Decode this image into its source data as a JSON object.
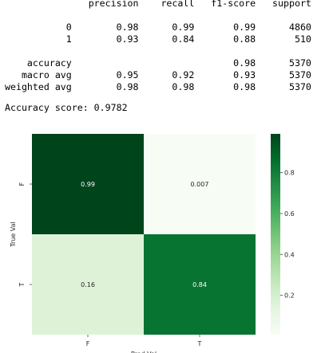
{
  "report": {
    "header": [
      "precision",
      "recall",
      "f1-score",
      "support"
    ],
    "rows": [
      {
        "label": "0",
        "precision": "0.98",
        "recall": "0.99",
        "f1": "0.99",
        "support": "4860"
      },
      {
        "label": "1",
        "precision": "0.93",
        "recall": "0.84",
        "f1": "0.88",
        "support": "510"
      },
      {
        "label": "",
        "precision": "",
        "recall": "",
        "f1": "",
        "support": ""
      },
      {
        "label": "accuracy",
        "precision": "",
        "recall": "",
        "f1": "0.98",
        "support": "5370"
      },
      {
        "label": "macro avg",
        "precision": "0.95",
        "recall": "0.92",
        "f1": "0.93",
        "support": "5370"
      },
      {
        "label": "weighted avg",
        "precision": "0.98",
        "recall": "0.98",
        "f1": "0.98",
        "support": "5370"
      }
    ]
  },
  "accuracy_text": "Accuracy score: 0.9782",
  "chart_data": {
    "type": "heatmap",
    "rows": [
      "F",
      "T"
    ],
    "cols": [
      "F",
      "T"
    ],
    "values": [
      [
        0.99,
        0.007
      ],
      [
        0.16,
        0.84
      ]
    ],
    "cell_labels": [
      [
        "0.99",
        "0.007"
      ],
      [
        "0.16",
        "0.84"
      ]
    ],
    "xlabel": "Pred Val",
    "ylabel": "True Val",
    "colormap": "Greens",
    "colorbar": {
      "min": 0.007,
      "max": 0.99,
      "ticks": [
        0.2,
        0.4,
        0.6,
        0.8
      ],
      "tick_labels": [
        "0.2",
        "0.4",
        "0.6",
        "0.8"
      ]
    }
  },
  "colors": {
    "low": "#f7fcf5",
    "high": "#00441b"
  }
}
